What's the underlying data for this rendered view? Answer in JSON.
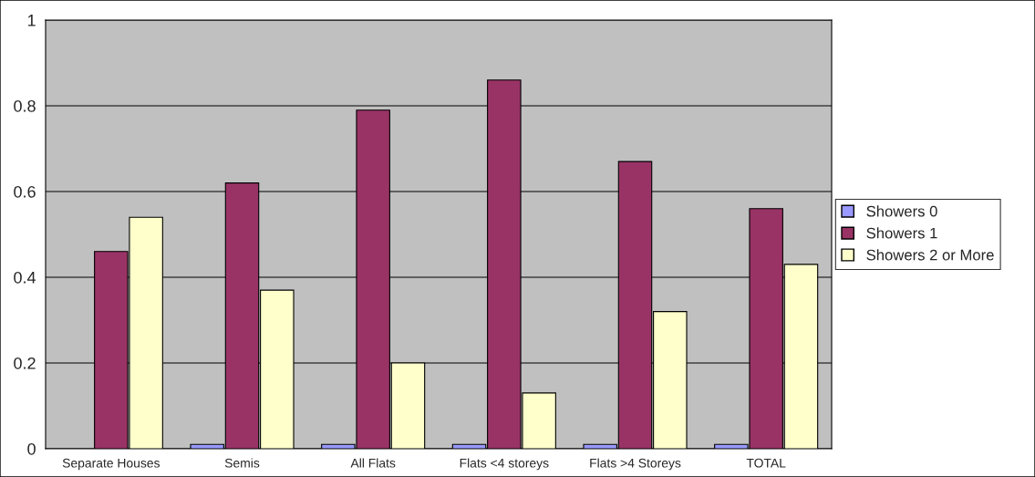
{
  "chart_data": {
    "type": "bar",
    "categories": [
      "Separate Houses",
      "Semis",
      "All Flats",
      "Flats <4 storeys",
      "Flats >4 Storeys",
      "TOTAL"
    ],
    "series": [
      {
        "name": "Showers 0",
        "color": "#9999ff",
        "values": [
          null,
          0.01,
          0.01,
          0.01,
          0.01,
          0.01
        ]
      },
      {
        "name": "Showers 1",
        "color": "#993366",
        "values": [
          0.46,
          0.62,
          0.79,
          0.86,
          0.67,
          0.56
        ]
      },
      {
        "name": "Showers 2 or More",
        "color": "#ffffcc",
        "values": [
          0.54,
          0.37,
          0.2,
          0.13,
          0.32,
          0.43
        ]
      }
    ],
    "ylim": [
      0,
      1
    ],
    "yticks": [
      0,
      0.2,
      0.4,
      0.6,
      0.8,
      1
    ],
    "grid": "y",
    "legend": "right"
  }
}
